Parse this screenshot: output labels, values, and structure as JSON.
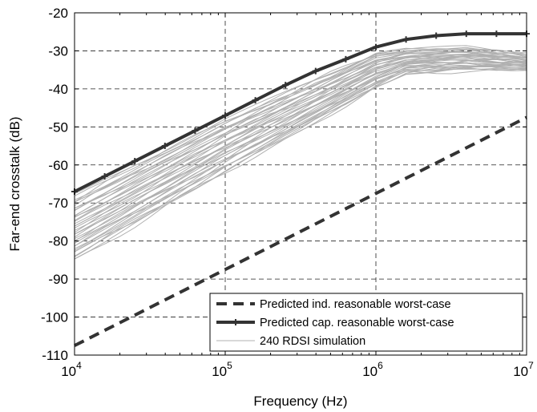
{
  "chart_data": {
    "type": "line",
    "xscale": "log",
    "xlabel": "Frequency (Hz)",
    "ylabel": "Far-end crosstalk (dB)",
    "xlim": [
      10000,
      10000000
    ],
    "ylim": [
      -110,
      -20
    ],
    "xticks": [
      {
        "value": 10000,
        "base": "10",
        "exp": "4"
      },
      {
        "value": 100000,
        "base": "10",
        "exp": "5"
      },
      {
        "value": 1000000,
        "base": "10",
        "exp": "6"
      },
      {
        "value": 10000000,
        "base": "10",
        "exp": "7"
      }
    ],
    "yticks": [
      -20,
      -30,
      -40,
      -50,
      -60,
      -70,
      -80,
      -90,
      -100,
      -110
    ],
    "grid": true,
    "legend_position": "bottom-right",
    "series": [
      {
        "name": "Predicted ind. reasonable worst-case",
        "style": "dashed",
        "color": "#333333",
        "x": [
          10000,
          10000000
        ],
        "y": [
          -107.5,
          -47.5
        ]
      },
      {
        "name": "Predicted cap. reasonable worst-case",
        "style": "solid-with-markers",
        "color": "#333333",
        "x": [
          10000,
          15850,
          25120,
          39810,
          63100,
          100000,
          158500,
          251200,
          398100,
          631000,
          1000000,
          1585000,
          2512000,
          3981000,
          6310000,
          10000000
        ],
        "y": [
          -67,
          -63,
          -59,
          -55,
          -51,
          -47,
          -43,
          -39,
          -35.3,
          -32.2,
          -29,
          -27,
          -26,
          -25.5,
          -25.5,
          -25.5
        ]
      },
      {
        "name": "240 RDSI simulation",
        "style": "thin",
        "color": "#b0b0b0",
        "x": [
          10000,
          100000,
          1000000,
          1600000,
          4000000,
          10000000
        ],
        "upper": [
          -68,
          -48,
          -30.5,
          -29.5,
          -29,
          -31
        ],
        "lower": [
          -85,
          -62,
          -40,
          -36,
          -35,
          -35
        ]
      }
    ]
  }
}
